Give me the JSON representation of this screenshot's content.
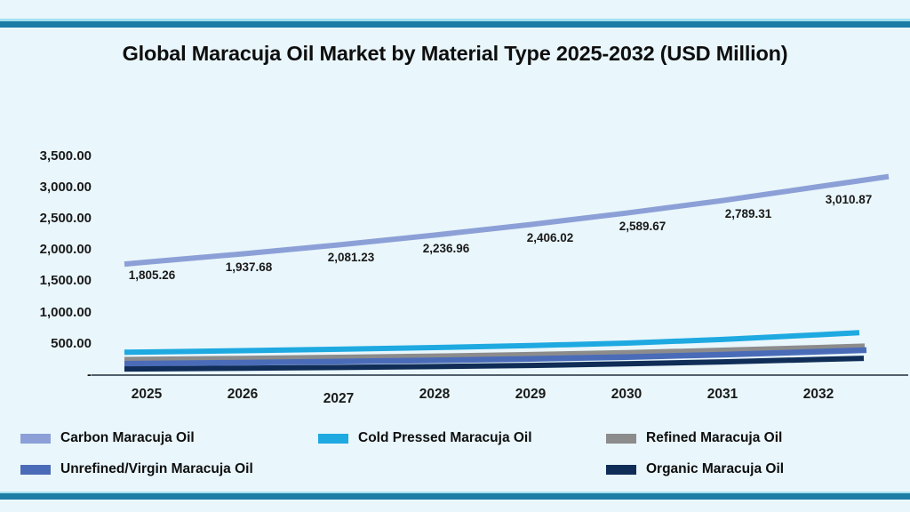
{
  "page": {
    "title": "Global Maracuja Oil Market by Material Type 2025-2032 (USD Million)",
    "background_color": "#e9f6fb",
    "accent_bar_color": "#1b7ca6",
    "accent_bar_light_color": "#a3dff0",
    "axis_line_color": "#1f2d3d"
  },
  "chart_data": {
    "type": "line",
    "title": "Global Maracuja Oil Market by Material Type 2025-2032 (USD Million)",
    "unit": "USD Million",
    "categories": [
      "2025",
      "2026",
      "2027",
      "2028",
      "2029",
      "2030",
      "2031",
      "2032"
    ],
    "xlabel": "",
    "ylabel": "",
    "ylim": [
      0,
      3500
    ],
    "grid": false,
    "legend_position": "bottom",
    "y_ticks": [
      {
        "label": "-",
        "value": 0
      },
      {
        "label": "500.00",
        "value": 500
      },
      {
        "label": "1,000.00",
        "value": 1000
      },
      {
        "label": "1,500.00",
        "value": 1500
      },
      {
        "label": "2,000.00",
        "value": 2000
      },
      {
        "label": "2,500.00",
        "value": 2500
      },
      {
        "label": "3,000.00",
        "value": 3000
      },
      {
        "label": "3,500.00",
        "value": 3500
      }
    ],
    "series": [
      {
        "name": "Carbon Maracuja Oil",
        "color": "#8CA0D7",
        "values": [
          1805.26,
          1937.68,
          2081.23,
          2236.96,
          2406.02,
          2589.67,
          2789.31,
          3010.87
        ],
        "data_labels": [
          "1,805.26",
          "1,937.68",
          "2,081.23",
          "2,236.96",
          "2,406.02",
          "2,589.67",
          "2,789.31",
          "3,010.87"
        ]
      },
      {
        "name": "Cold Pressed Maracuja Oil",
        "color": "#1EA9E1",
        "values": [
          370,
          390,
          413,
          440,
          472,
          512,
          570,
          645
        ],
        "data_labels": []
      },
      {
        "name": "Refined Maracuja Oil",
        "color": "#8C8C8C",
        "values": [
          255,
          270,
          287,
          307,
          332,
          362,
          400,
          445
        ],
        "data_labels": []
      },
      {
        "name": "Unrefined/Virgin Maracuja Oil",
        "color": "#4A6CB8",
        "values": [
          185,
          199,
          216,
          236,
          259,
          288,
          327,
          375
        ],
        "data_labels": []
      },
      {
        "name": "Organic Maracuja Oil",
        "color": "#0F2D57",
        "values": [
          100,
          110,
          122,
          137,
          155,
          180,
          212,
          250
        ],
        "data_labels": []
      }
    ]
  }
}
